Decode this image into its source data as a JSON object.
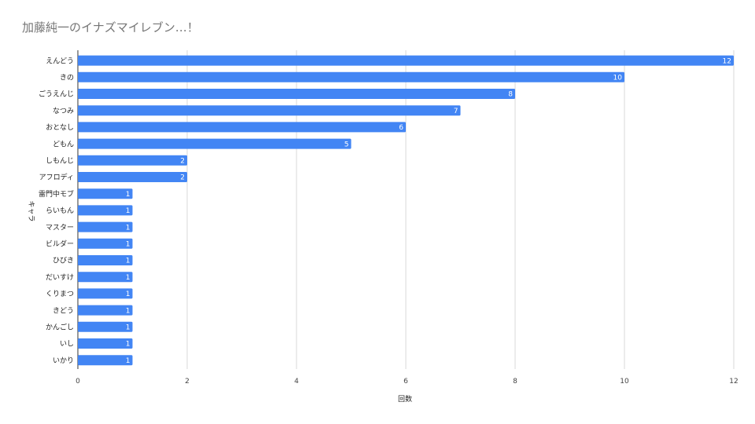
{
  "chart_data": {
    "type": "bar",
    "orientation": "horizontal",
    "title": "加藤純一のイナズマイレブン…！",
    "xlabel": "回数",
    "ylabel": "キャラ",
    "xlim": [
      0,
      12
    ],
    "xticks": [
      0,
      2,
      4,
      6,
      8,
      10,
      12
    ],
    "grid": true,
    "color": "#4285f4",
    "categories": [
      "えんどう",
      "きの",
      "ごうえんじ",
      "なつみ",
      "おとなし",
      "どもん",
      "しもんじ",
      "アフロディ",
      "雷門中モブ",
      "らいもん",
      "マスター",
      "ビルダー",
      "ひびき",
      "だいすけ",
      "くりまつ",
      "きどう",
      "かんごし",
      "いし",
      "いかり"
    ],
    "values": [
      12,
      10,
      8,
      7,
      6,
      5,
      2,
      2,
      1,
      1,
      1,
      1,
      1,
      1,
      1,
      1,
      1,
      1,
      1
    ]
  }
}
